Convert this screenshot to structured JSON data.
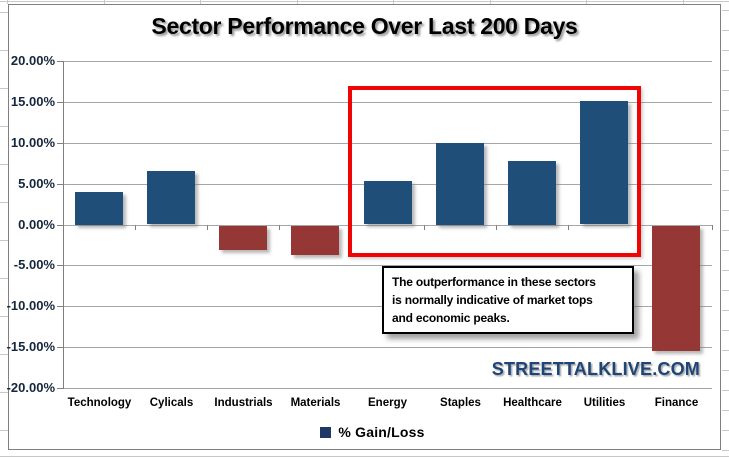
{
  "title": "Sector Performance Over Last 200 Days",
  "watermark": "STREETTALKLIVE.COM",
  "annotation": {
    "lines": [
      "The outperformance in these sectors",
      "is normally indicative of market tops",
      "and economic peaks."
    ]
  },
  "chart_data": {
    "type": "bar",
    "title": "Sector Performance Over Last 200 Days",
    "categories": [
      "Technology",
      "Cylicals",
      "Industrials",
      "Materials",
      "Energy",
      "Staples",
      "Healthcare",
      "Utilities",
      "Finance"
    ],
    "series": [
      {
        "name": "% Gain/Loss",
        "values": [
          4.0,
          6.5,
          -2.9,
          -3.5,
          5.3,
          10.0,
          7.8,
          15.1,
          -15.3
        ]
      }
    ],
    "ylim": [
      -20,
      20
    ],
    "y_tick_step": 5,
    "y_tick_labels": [
      "20.00%",
      "15.00%",
      "10.00%",
      "5.00%",
      "0.00%",
      "-5.00%",
      "-10.00%",
      "-15.00%",
      "-20.00%"
    ],
    "grid": true,
    "legend_position": "bottom",
    "colors": {
      "positive_bar": "#1F4E79",
      "negative_bar": "#953735",
      "legend_swatch": "#1F3864",
      "highlight_box": "#F00505",
      "watermark_text": "#1F4577"
    },
    "highlight_box": {
      "from_category": "Energy",
      "to_category": "Utilities",
      "note": "The outperformance in these sectors is normally indicative of market tops and economic peaks."
    }
  }
}
